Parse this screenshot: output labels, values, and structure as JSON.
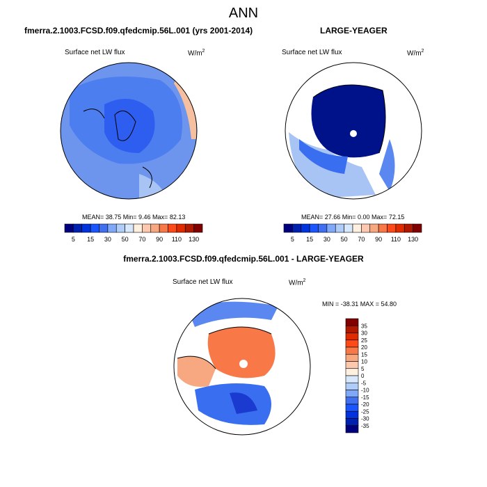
{
  "title": "ANN",
  "panels": [
    {
      "title": "fmerra.2.1003.FCSD.f09.qfedcmip.56L.001 (yrs 2001-2014)",
      "variable": "Surface net LW flux",
      "units": "W/m",
      "units_sup": "2",
      "stats": "MEAN=  38.75  Min=   9.46  Max=  82.13"
    },
    {
      "title": "LARGE-YEAGER",
      "variable": "Surface net LW flux",
      "units": "W/m",
      "units_sup": "2",
      "stats": "MEAN=  27.66  Min=   0.00  Max=  72.15"
    },
    {
      "title": "fmerra.2.1003.FCSD.f09.qfedcmip.56L.001 - LARGE-YEAGER",
      "variable": "Surface net LW flux",
      "units": "W/m",
      "units_sup": "2",
      "stats": "MIN = -38.31 MAX =  54.80"
    }
  ],
  "colorbar_abs": {
    "labels": [
      "5",
      "15",
      "30",
      "50",
      "70",
      "90",
      "110",
      "130"
    ],
    "colors": [
      "#00007f",
      "#0020b0",
      "#0033dd",
      "#1a55ff",
      "#4070f0",
      "#80a8f8",
      "#b0ccf8",
      "#d8e8fc",
      "#fff0e0",
      "#fcc8b0",
      "#f8a880",
      "#f87848",
      "#ff4a18",
      "#e02a00",
      "#b01800",
      "#800000"
    ]
  },
  "colorbar_diff": {
    "labels": [
      "35",
      "30",
      "25",
      "20",
      "15",
      "10",
      "5",
      "0",
      "-5",
      "-10",
      "-15",
      "-20",
      "-25",
      "-30",
      "-35"
    ],
    "colors": [
      "#800000",
      "#b01800",
      "#e02a00",
      "#ff4a18",
      "#f87848",
      "#f8a880",
      "#fcc8b0",
      "#fff0e0",
      "#d8e8fc",
      "#b0ccf8",
      "#80a8f8",
      "#4070f0",
      "#1a55ff",
      "#0033dd",
      "#0020b0",
      "#00007f"
    ]
  }
}
